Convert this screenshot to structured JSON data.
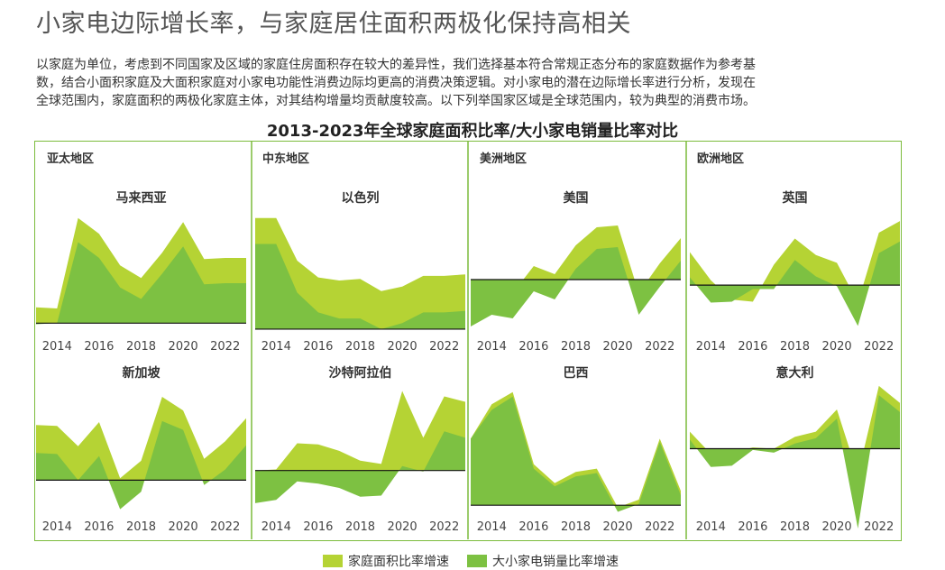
{
  "title": "小家电边际增长率，与家庭居住面积两极化保持高相关",
  "description": [
    "以家庭为单位，考虑到不同国家及区域的家庭住房面积存在较大的差异性，我们选择基本符合常规正态分布的家庭数据作为参考基",
    "数，结合小面积家庭及大面积家庭对小家电功能性消费边际均更高的消费决策逻辑。对小家电的潜在边际增长率进行分析，发现在",
    "全球范围内，家庭面积的两极化家庭主体，对其结构增量均贡献度较高。以下列举国家区域是全球范围内，较为典型的消费市场。"
  ],
  "chart_title": "2013-2023年全球家庭面积比率/大小家电销量比率对比",
  "regions": [
    "亚太地区",
    "中东地区",
    "美洲地区",
    "欧洲地区"
  ],
  "colors": {
    "area": "#b5d334",
    "sales": "#7dc142",
    "border": "#7cbc3c",
    "baseline": "#111111"
  },
  "legend": [
    {
      "label": "家庭面积比率增速",
      "color": "#b5d334"
    },
    {
      "label": "大小家电销量比率增速",
      "color": "#7dc142"
    }
  ],
  "chart_data": [
    {
      "type": "area",
      "title": "马来西亚",
      "x": [
        2013,
        2014,
        2015,
        2016,
        2017,
        2018,
        2019,
        2020,
        2021,
        2022,
        2023
      ],
      "xticks": [
        "2014",
        "2016",
        "2018",
        "2020",
        "2022"
      ],
      "ylim": [
        -1,
        11
      ],
      "series": [
        {
          "name": "家庭面积比率增速",
          "values": [
            1.5,
            1.4,
            10.0,
            8.5,
            5.5,
            4.3,
            6.7,
            9.6,
            6.1,
            6.2,
            6.2
          ]
        },
        {
          "name": "大小家电销量比率增速",
          "values": [
            -0.1,
            0.0,
            7.7,
            6.2,
            3.4,
            2.3,
            4.7,
            7.3,
            3.7,
            3.8,
            3.8
          ]
        }
      ]
    },
    {
      "type": "area",
      "title": "以色列",
      "x": [
        2013,
        2014,
        2015,
        2016,
        2017,
        2018,
        2019,
        2020,
        2021,
        2022,
        2023
      ],
      "xticks": [
        "2014",
        "2016",
        "2018",
        "2020",
        "2022"
      ],
      "ylim": [
        -0.3,
        8
      ],
      "series": [
        {
          "name": "家庭面积比率增速",
          "values": [
            7.3,
            7.3,
            4.5,
            3.4,
            3.2,
            3.3,
            2.5,
            2.8,
            3.5,
            3.5,
            3.6
          ]
        },
        {
          "name": "大小家电销量比率增速",
          "values": [
            5.6,
            5.6,
            2.4,
            1.1,
            0.7,
            0.7,
            0.0,
            0.4,
            1.1,
            1.1,
            1.2
          ]
        }
      ]
    },
    {
      "type": "area",
      "title": "美国",
      "x": [
        2013,
        2014,
        2015,
        2016,
        2017,
        2018,
        2019,
        2020,
        2021,
        2022,
        2023
      ],
      "xticks": [
        "2014",
        "2016",
        "2018",
        "2020",
        "2022"
      ],
      "ylim": [
        -6,
        8
      ],
      "series": [
        {
          "name": "家庭面积比率增速",
          "values": [
            -2.5,
            -1.0,
            -1.5,
            1.5,
            0.6,
            3.8,
            5.8,
            6.0,
            -1.5,
            1.8,
            4.6
          ]
        },
        {
          "name": "大小家电销量比率增速",
          "values": [
            -5.2,
            -3.9,
            -4.3,
            -1.3,
            -2.2,
            1.2,
            3.4,
            3.6,
            -3.9,
            -0.8,
            2.1
          ]
        }
      ]
    },
    {
      "type": "area",
      "title": "英国",
      "x": [
        2013,
        2014,
        2015,
        2016,
        2017,
        2018,
        2019,
        2020,
        2021,
        2022,
        2023
      ],
      "xticks": [
        "2014",
        "2016",
        "2018",
        "2020",
        "2022"
      ],
      "ylim": [
        -5,
        8
      ],
      "series": [
        {
          "name": "家庭面积比率增速",
          "values": [
            3.4,
            0.5,
            -1.5,
            -1.7,
            2.1,
            4.8,
            3.1,
            2.3,
            -1.8,
            5.4,
            6.6
          ]
        },
        {
          "name": "大小家电销量比率增速",
          "values": [
            0.8,
            -1.8,
            -1.7,
            -0.4,
            -0.4,
            2.6,
            0.9,
            -0.1,
            -4.2,
            3.3,
            4.5
          ]
        }
      ]
    },
    {
      "type": "area",
      "title": "新加坡",
      "x": [
        2013,
        2014,
        2015,
        2016,
        2017,
        2018,
        2019,
        2020,
        2021,
        2022,
        2023
      ],
      "xticks": [
        "2014",
        "2016",
        "2018",
        "2020",
        "2022"
      ],
      "ylim": [
        -3.5,
        10
      ],
      "series": [
        {
          "name": "家庭面积比率增速",
          "values": [
            5.7,
            5.6,
            3.5,
            6.0,
            0.2,
            2.0,
            8.6,
            7.2,
            2.2,
            4.0,
            6.4
          ]
        },
        {
          "name": "大小家电销量比率增速",
          "values": [
            2.8,
            2.7,
            0.0,
            2.5,
            -3.0,
            -1.2,
            6.1,
            5.2,
            -0.5,
            1.1,
            3.6
          ]
        }
      ]
    },
    {
      "type": "area",
      "title": "沙特阿拉伯",
      "x": [
        2013,
        2014,
        2015,
        2016,
        2017,
        2018,
        2019,
        2020,
        2021,
        2022,
        2023
      ],
      "xticks": [
        "2014",
        "2016",
        "2018",
        "2020",
        "2022"
      ],
      "ylim": [
        -4,
        8
      ],
      "series": [
        {
          "name": "家庭面积比率增速",
          "values": [
            0.0,
            0.1,
            2.5,
            2.4,
            1.8,
            0.9,
            0.6,
            7.3,
            3.0,
            6.8,
            6.3
          ]
        },
        {
          "name": "大小家电销量比率增速",
          "values": [
            -3.0,
            -2.7,
            -1.0,
            -1.2,
            -1.6,
            -2.4,
            -2.3,
            0.4,
            -0.1,
            3.6,
            3.0
          ]
        }
      ]
    },
    {
      "type": "area",
      "title": "巴西",
      "x": [
        2013,
        2014,
        2015,
        2016,
        2017,
        2018,
        2019,
        2020,
        2021,
        2022,
        2023
      ],
      "xticks": [
        "2014",
        "2016",
        "2018",
        "2020",
        "2022"
      ],
      "ylim": [
        -0.8,
        11
      ],
      "series": [
        {
          "name": "家庭面积比率增速",
          "values": [
            6.0,
            9.1,
            10.2,
            3.7,
            2.0,
            3.0,
            3.3,
            -0.2,
            0.5,
            6.0,
            1.3
          ]
        },
        {
          "name": "大小家电销量比率增速",
          "values": [
            6.0,
            8.6,
            9.8,
            3.3,
            1.7,
            2.6,
            2.9,
            -0.6,
            0.1,
            5.7,
            0.9
          ]
        }
      ]
    },
    {
      "type": "area",
      "title": "意大利",
      "x": [
        2013,
        2014,
        2015,
        2016,
        2017,
        2018,
        2019,
        2020,
        2021,
        2022,
        2023
      ],
      "xticks": [
        "2014",
        "2016",
        "2018",
        "2020",
        "2022"
      ],
      "ylim": [
        -5,
        5
      ],
      "series": [
        {
          "name": "家庭面积比率增速",
          "values": [
            1.3,
            -0.4,
            -0.3,
            0.1,
            0.0,
            0.9,
            1.3,
            3.0,
            -2.0,
            4.8,
            3.5
          ]
        },
        {
          "name": "大小家电销量比率增速",
          "values": [
            0.7,
            -1.4,
            -1.3,
            -0.1,
            -0.3,
            0.4,
            0.8,
            2.3,
            -6.1,
            4.1,
            2.8
          ]
        }
      ]
    }
  ]
}
